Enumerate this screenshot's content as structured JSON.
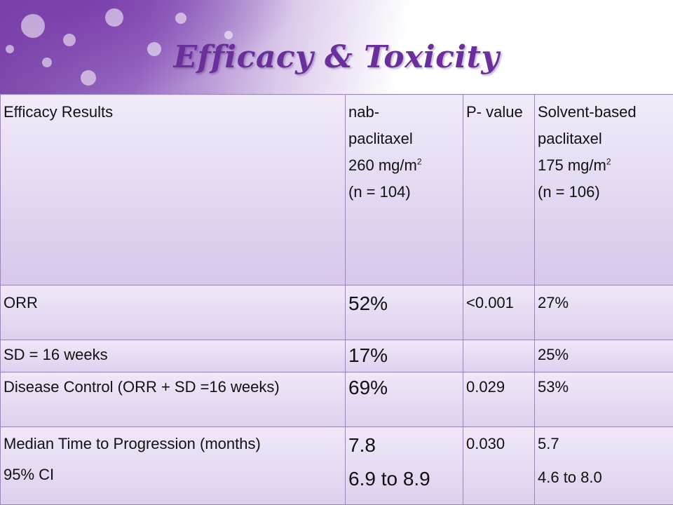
{
  "slide": {
    "title": "Efficacy & Toxicity"
  },
  "table": {
    "header": {
      "col1": "Efficacy Results",
      "col2": {
        "line1": "nab-",
        "line2": "paclitaxel",
        "line3": "260 mg/m",
        "line3_sup": "2",
        "line4": "(n = 104)"
      },
      "col3": "P- value",
      "col4": {
        "line1": "Solvent-based",
        "line2": "paclitaxel",
        "line3": "175 mg/m",
        "line3_sup": "2",
        "line4": "(n = 106)"
      }
    },
    "rows": [
      {
        "label": "ORR",
        "nab": "52%",
        "p": "<0.001",
        "sb": "27%"
      },
      {
        "label": "SD = 16 weeks",
        "nab": "17%",
        "p": "",
        "sb": "25%"
      },
      {
        "label": "Disease Control (ORR + SD =16 weeks)",
        "nab": "69%",
        "p": "0.029",
        "sb": "53%"
      },
      {
        "label": "Median Time to Progression (months)",
        "label2": "95% CI",
        "nab": "7.8",
        "nab2": "6.9 to 8.9",
        "p": "0.030",
        "sb": "5.7",
        "sb2": "4.6 to 8.0"
      }
    ]
  }
}
